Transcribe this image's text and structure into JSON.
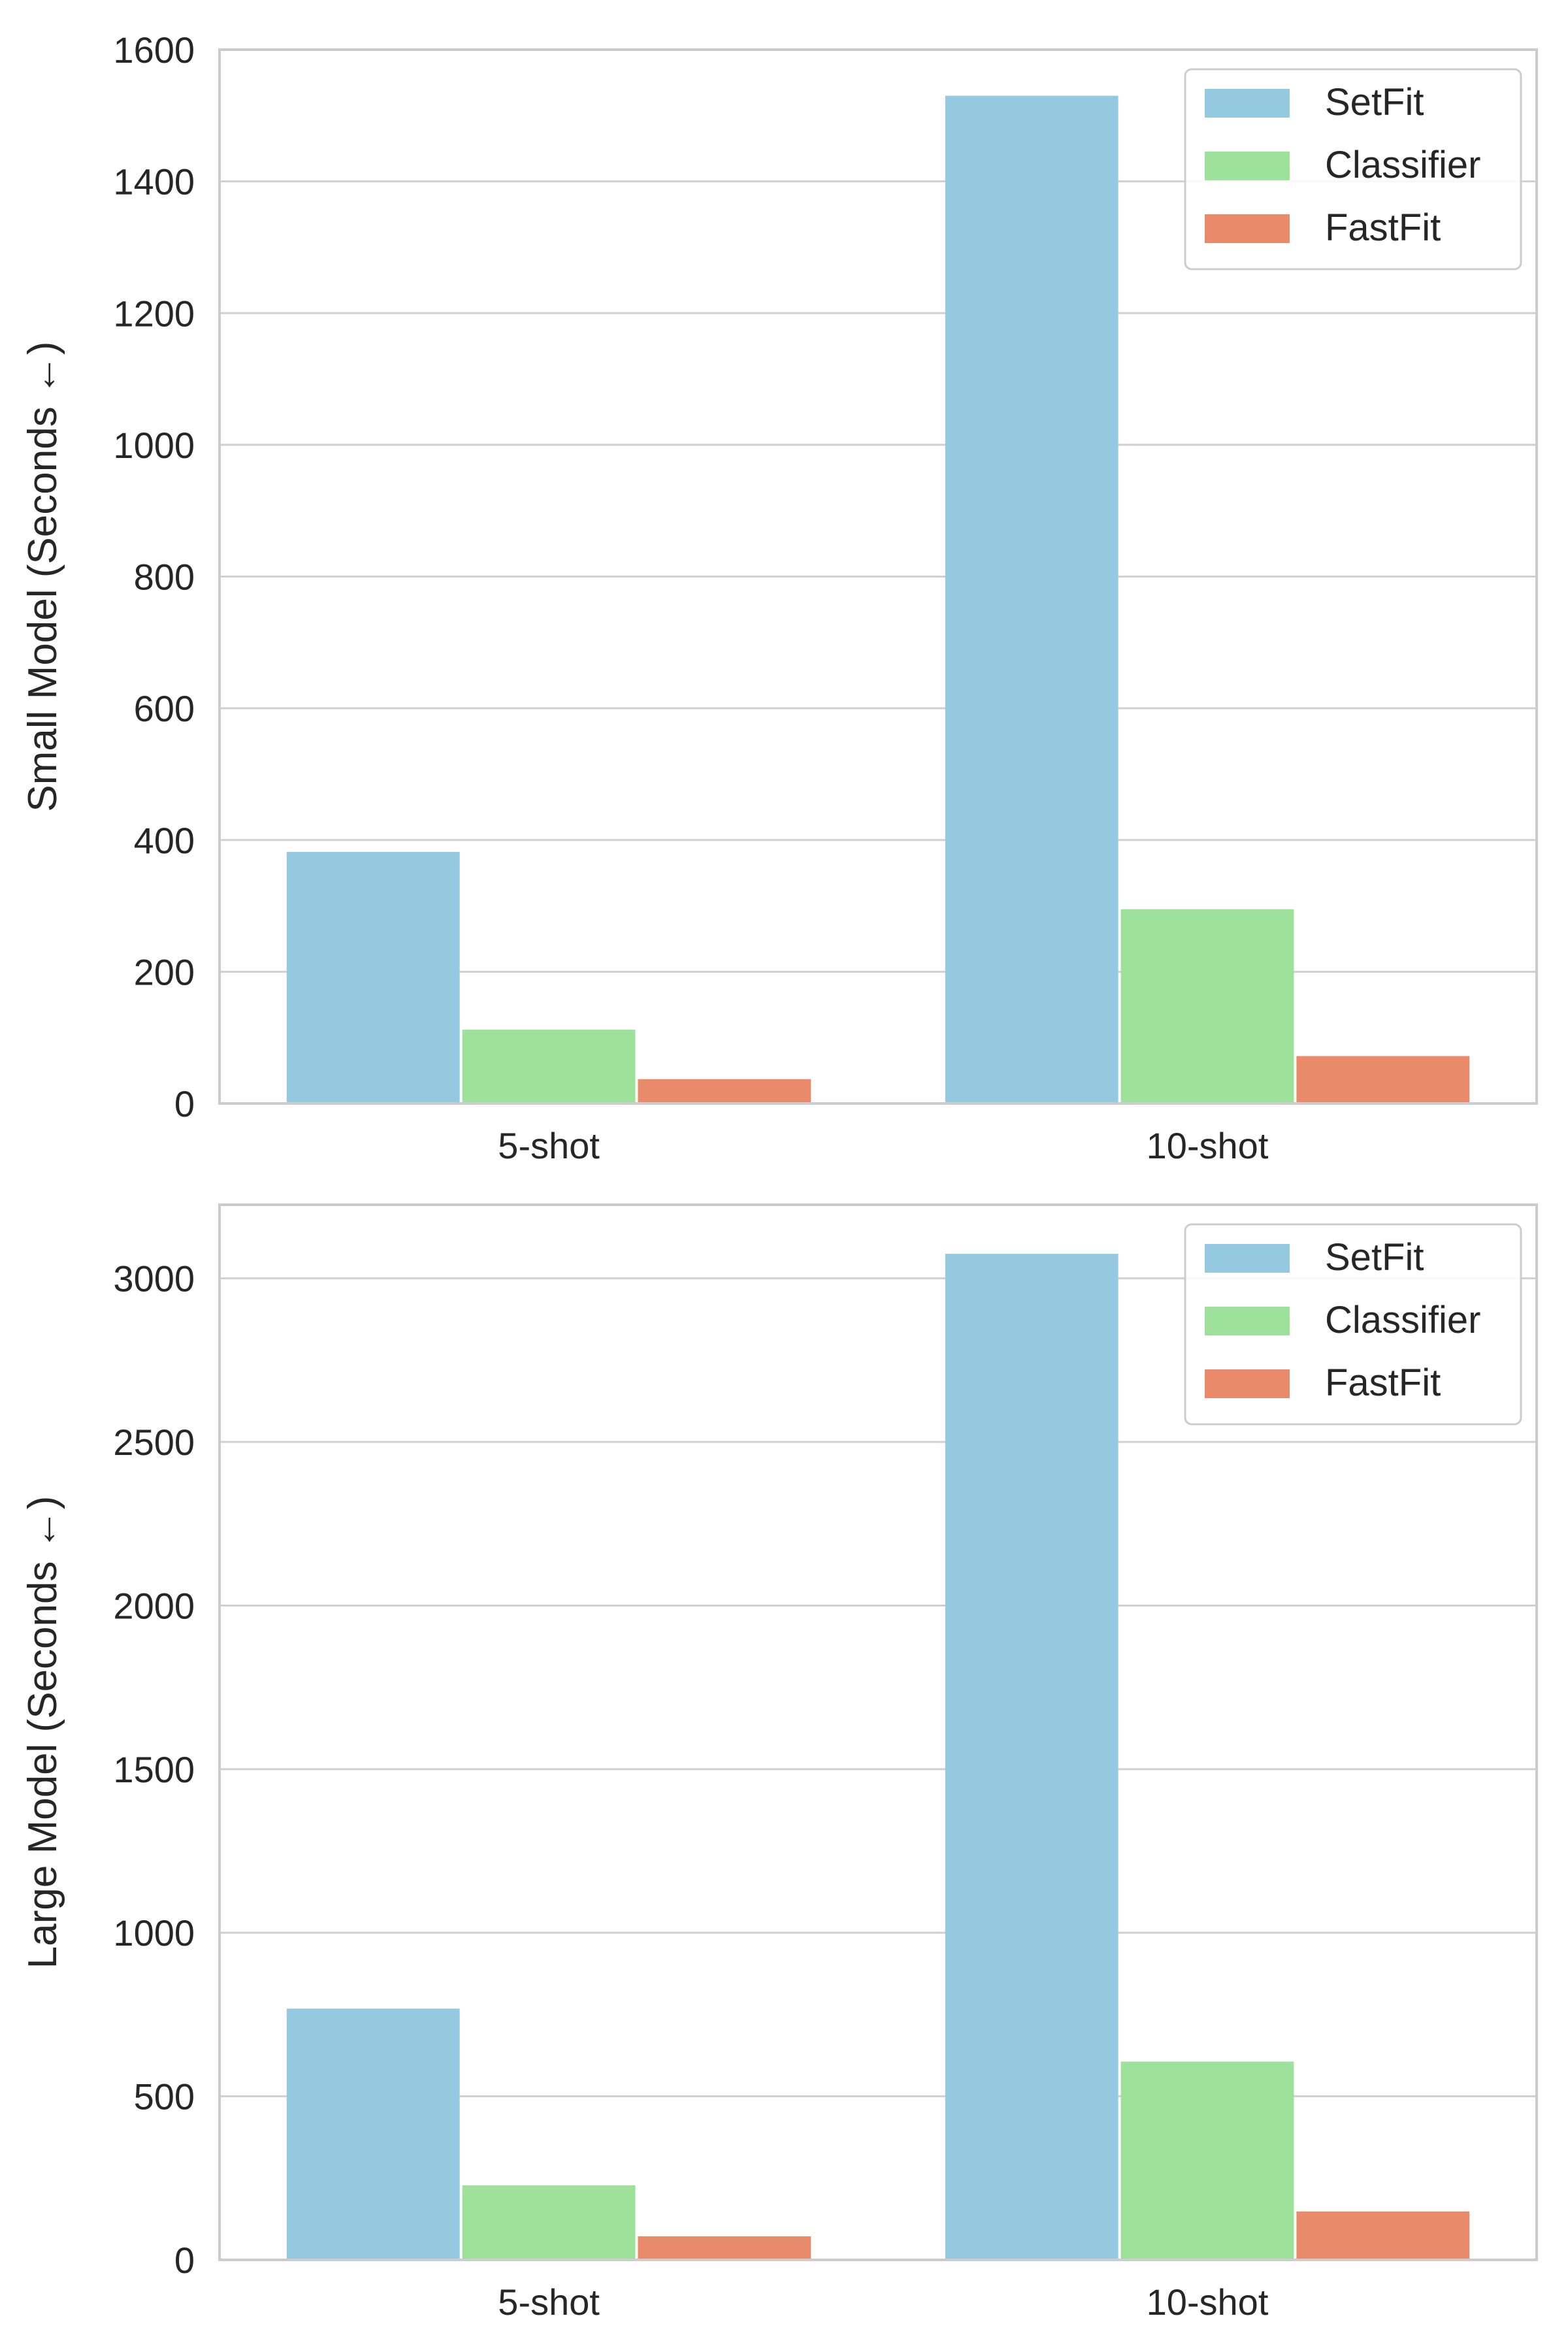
{
  "chart_data": [
    {
      "type": "bar",
      "title": "",
      "xlabel": "",
      "ylabel": "Small Model (Seconds ←)",
      "categories": [
        "5-shot",
        "10-shot"
      ],
      "series": [
        {
          "name": "SetFit",
          "values": [
            382,
            1530
          ],
          "color": "#95c9df"
        },
        {
          "name": "Classifier",
          "values": [
            112,
            295
          ],
          "color": "#9de19a"
        },
        {
          "name": "FastFit",
          "values": [
            37,
            72
          ],
          "color": "#e98b6a"
        }
      ],
      "ylim": [
        0,
        1600
      ],
      "yticks": [
        0,
        200,
        400,
        600,
        800,
        1000,
        1200,
        1400,
        1600
      ],
      "grid": true,
      "legend_position": "top-right"
    },
    {
      "type": "bar",
      "title": "",
      "xlabel": "",
      "ylabel": "Large Model (Seconds ←)",
      "categories": [
        "5-shot",
        "10-shot"
      ],
      "series": [
        {
          "name": "SetFit",
          "values": [
            768,
            3075
          ],
          "color": "#95c9df"
        },
        {
          "name": "Classifier",
          "values": [
            228,
            606
          ],
          "color": "#9de19a"
        },
        {
          "name": "FastFit",
          "values": [
            72,
            148
          ],
          "color": "#e98b6a"
        }
      ],
      "ylim": [
        0,
        3225
      ],
      "yticks": [
        0,
        500,
        1000,
        1500,
        2000,
        2500,
        3000
      ],
      "grid": true,
      "legend_position": "top-right"
    }
  ]
}
